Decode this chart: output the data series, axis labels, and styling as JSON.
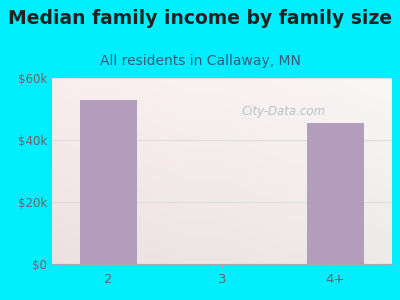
{
  "title": "Median family income by family size",
  "subtitle": "All residents in Callaway, MN",
  "categories": [
    "2",
    "3",
    "4+"
  ],
  "values": [
    53000,
    0,
    45500
  ],
  "bar_color": "#b39dbd",
  "bg_outer": "#00eeff",
  "ylim": [
    0,
    60000
  ],
  "yticks": [
    0,
    20000,
    40000,
    60000
  ],
  "ytick_labels": [
    "$0",
    "$20k",
    "$40k",
    "$60k"
  ],
  "title_fontsize": 13.5,
  "subtitle_fontsize": 10,
  "title_color": "#222222",
  "subtitle_color": "#3a5a7a",
  "watermark_text": "City-Data.com",
  "watermark_color": "#aab8c0",
  "tick_color": "#666666",
  "grid_color": "#dddddd"
}
